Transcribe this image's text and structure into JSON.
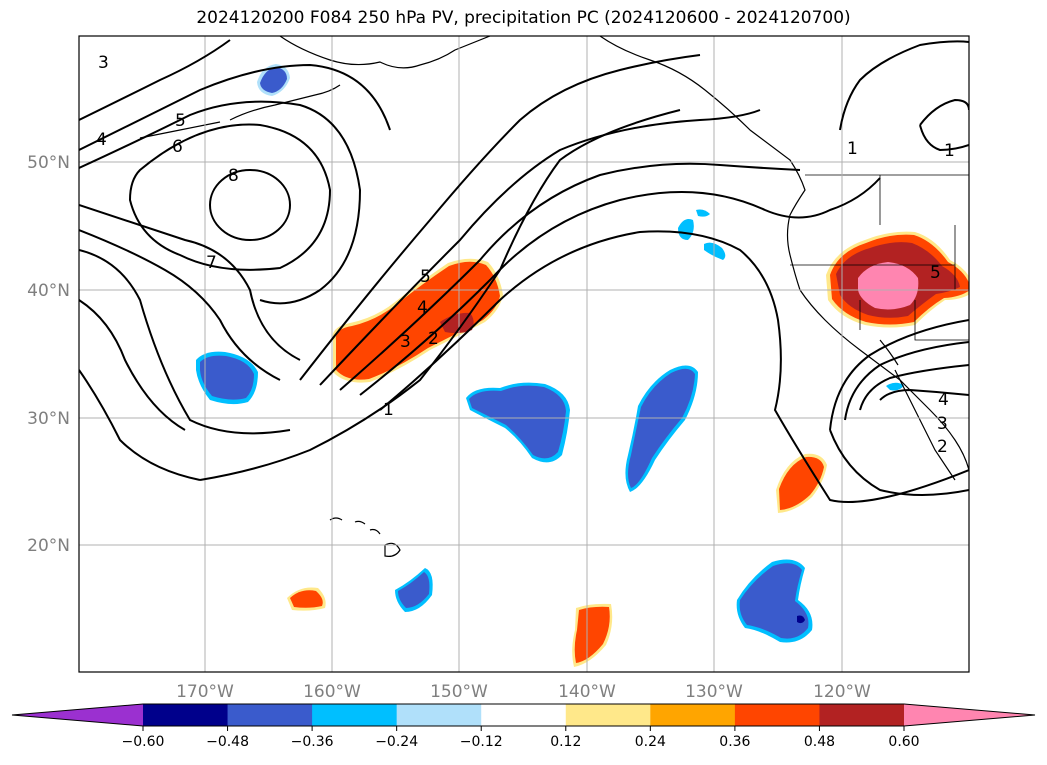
{
  "title": "2024120200 F084 250 hPa PV, precipitation PC (2024120600 - 2024120700)",
  "lat_labels": [
    "50°N",
    "40°N",
    "30°N",
    "20°N"
  ],
  "lon_labels": [
    "170°W",
    "160°W",
    "150°W",
    "140°W",
    "130°W",
    "120°W"
  ],
  "contour_labels": [
    "3",
    "4",
    "5",
    "6",
    "8",
    "7",
    "5",
    "4",
    "3",
    "2",
    "1",
    "1",
    "1",
    "4",
    "3",
    "2",
    "5"
  ],
  "colorbar": {
    "ticks": [
      "−0.60",
      "−0.48",
      "−0.36",
      "−0.24",
      "−0.12",
      "0.12",
      "0.24",
      "0.36",
      "0.48",
      "0.60"
    ],
    "colors": [
      "#9b30d0",
      "#00008b",
      "#3a5bcc",
      "#00bfff",
      "#b0e0fa",
      "#ffffff",
      "#ffe88a",
      "#ffa500",
      "#ff4500",
      "#b22222",
      "#ff85b0"
    ]
  }
}
